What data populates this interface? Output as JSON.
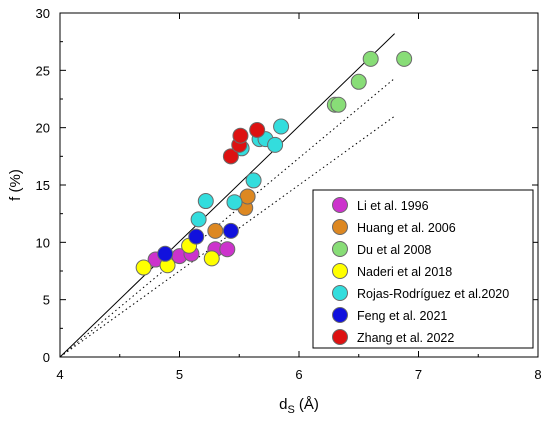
{
  "chart_data": {
    "type": "scatter",
    "x_label_main": "d",
    "x_label_sub": "S",
    "x_label_unit": "(Å)",
    "y_label": "f (%)",
    "xlim": [
      4,
      8
    ],
    "ylim": [
      0,
      30
    ],
    "x_ticks": [
      "4",
      "5",
      "6",
      "7",
      "8"
    ],
    "y_ticks": [
      "0",
      "5",
      "10",
      "15",
      "20",
      "25",
      "30"
    ],
    "x_tick_values": [
      4,
      5,
      6,
      7,
      8
    ],
    "y_tick_values": [
      0,
      5,
      10,
      15,
      20,
      25,
      30
    ],
    "grid": false,
    "legend_position": "bottom-right",
    "series": [
      {
        "name": "Li et al. 1996",
        "color": "#cc33cc",
        "points": [
          [
            4.8,
            8.5
          ],
          [
            5.0,
            8.8
          ],
          [
            5.1,
            9.0
          ],
          [
            5.3,
            9.4
          ],
          [
            5.4,
            9.4
          ]
        ]
      },
      {
        "name": "Huang et al. 2006",
        "color": "#dd8822",
        "points": [
          [
            5.3,
            11.0
          ],
          [
            5.55,
            13.0
          ],
          [
            5.57,
            14.0
          ]
        ]
      },
      {
        "name": "Du et al 2008",
        "color": "#88dd77",
        "points": [
          [
            6.3,
            22.0
          ],
          [
            6.33,
            22.0
          ],
          [
            6.5,
            24.0
          ],
          [
            6.6,
            26.0
          ],
          [
            6.88,
            26.0
          ]
        ]
      },
      {
        "name": "Naderi et al 2018",
        "color": "#ffff00",
        "points": [
          [
            4.7,
            7.8
          ],
          [
            4.9,
            8.0
          ],
          [
            5.08,
            9.7
          ],
          [
            5.27,
            8.6
          ]
        ]
      },
      {
        "name": "Rojas-Rodríguez et al.2020",
        "color": "#33dddd",
        "points": [
          [
            5.16,
            12.0
          ],
          [
            5.22,
            13.6
          ],
          [
            5.46,
            13.5
          ],
          [
            5.52,
            18.2
          ],
          [
            5.62,
            15.4
          ],
          [
            5.67,
            19.0
          ],
          [
            5.72,
            19.0
          ],
          [
            5.8,
            18.5
          ],
          [
            5.85,
            20.1
          ]
        ]
      },
      {
        "name": "Feng et al. 2021",
        "color": "#1111dd",
        "points": [
          [
            4.88,
            9.0
          ],
          [
            5.14,
            10.5
          ],
          [
            5.43,
            11.0
          ]
        ]
      },
      {
        "name": "Zhang et al. 2022",
        "color": "#dd1111",
        "points": [
          [
            5.43,
            17.5
          ],
          [
            5.5,
            18.5
          ],
          [
            5.51,
            19.3
          ],
          [
            5.65,
            19.8
          ]
        ]
      }
    ],
    "fit_lines": [
      {
        "style": "solid",
        "points": [
          [
            4.0,
            0.0
          ],
          [
            6.8,
            28.2
          ]
        ]
      },
      {
        "style": "dotted",
        "points": [
          [
            4.0,
            0.0
          ],
          [
            6.8,
            24.3
          ]
        ]
      },
      {
        "style": "dotted",
        "points": [
          [
            4.0,
            0.0
          ],
          [
            6.8,
            21.0
          ]
        ]
      }
    ]
  }
}
